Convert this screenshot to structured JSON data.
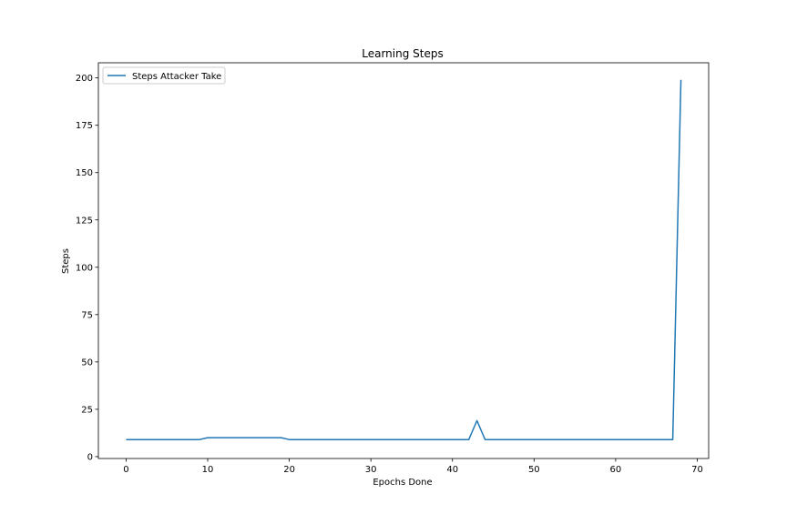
{
  "chart_data": {
    "type": "line",
    "title": "Learning Steps",
    "xlabel": "Epochs Done",
    "ylabel": "Steps",
    "xlim": [
      -3.4,
      71.4
    ],
    "ylim": [
      -1,
      208
    ],
    "xticks": [
      0,
      10,
      20,
      30,
      40,
      50,
      60,
      70
    ],
    "yticks": [
      0,
      25,
      50,
      75,
      100,
      125,
      150,
      175,
      200
    ],
    "grid": false,
    "legend_position": "top-left",
    "color": "#1f77b4",
    "series": [
      {
        "name": "Steps Attacker Take",
        "x": [
          0,
          1,
          2,
          3,
          4,
          5,
          6,
          7,
          8,
          9,
          10,
          11,
          12,
          13,
          14,
          15,
          16,
          17,
          18,
          19,
          20,
          21,
          22,
          23,
          24,
          25,
          26,
          27,
          28,
          29,
          30,
          31,
          32,
          33,
          34,
          35,
          36,
          37,
          38,
          39,
          40,
          41,
          42,
          43,
          44,
          45,
          46,
          47,
          48,
          49,
          50,
          51,
          52,
          53,
          54,
          55,
          56,
          57,
          58,
          59,
          60,
          61,
          62,
          63,
          64,
          65,
          66,
          67,
          68
        ],
        "values": [
          9,
          9,
          9,
          9,
          9,
          9,
          9,
          9,
          9,
          9,
          10,
          10,
          10,
          10,
          10,
          10,
          10,
          10,
          10,
          10,
          9,
          9,
          9,
          9,
          9,
          9,
          9,
          9,
          9,
          9,
          9,
          9,
          9,
          9,
          9,
          9,
          9,
          9,
          9,
          9,
          9,
          9,
          9,
          19,
          9,
          9,
          9,
          9,
          9,
          9,
          9,
          9,
          9,
          9,
          9,
          9,
          9,
          9,
          9,
          9,
          9,
          9,
          9,
          9,
          9,
          9,
          9,
          9,
          199
        ]
      }
    ]
  }
}
